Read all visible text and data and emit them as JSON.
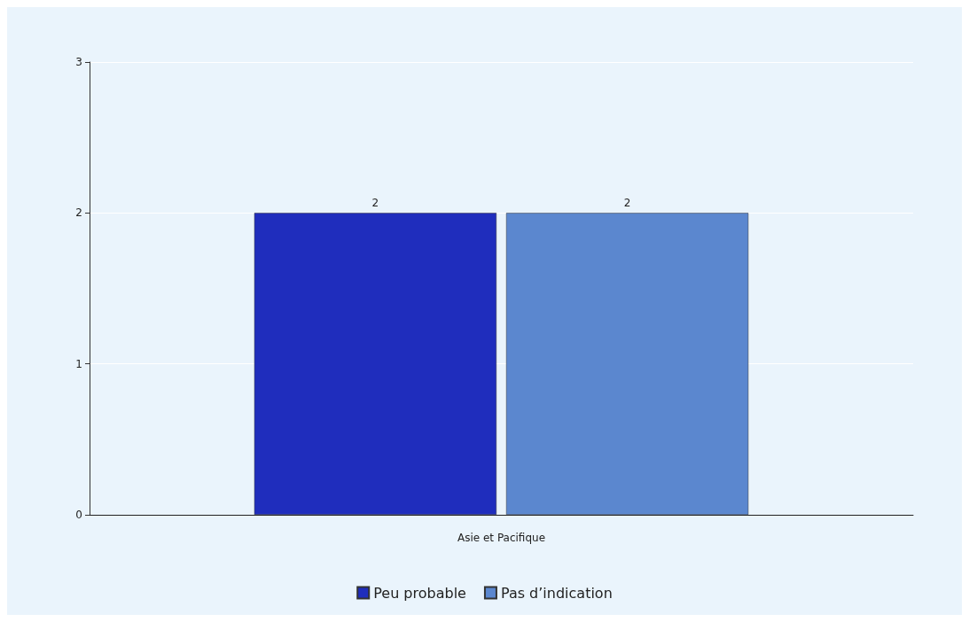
{
  "chart_data": {
    "type": "bar",
    "categories": [
      "Asie et Pacifique"
    ],
    "series": [
      {
        "name": "Peu probable",
        "color": "#1f2dbd",
        "values": [
          2
        ]
      },
      {
        "name": "Pas d’indication",
        "color": "#5b87cf",
        "values": [
          2
        ]
      }
    ],
    "ylim": [
      0,
      3
    ],
    "yticks": [
      0,
      1,
      2,
      3
    ],
    "grid": "y",
    "legend": "bottom",
    "data_labels": true
  }
}
